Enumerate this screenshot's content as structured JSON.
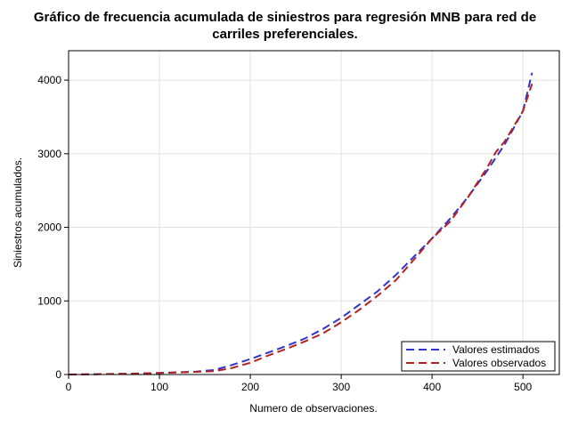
{
  "chart_data": {
    "type": "line",
    "title": "Gráfico de frecuencia acumulada de siniestros para regresión MNB para red de carriles preferenciales.",
    "title_lines": [
      "Gráfico de frecuencia acumulada de siniestros para regresión MNB para red de",
      "carriles preferenciales."
    ],
    "xlabel": "Numero de observaciones.",
    "ylabel": "Siniestros acumulados.",
    "xlim": [
      0,
      540
    ],
    "ylim": [
      0,
      4400
    ],
    "xticks": [
      0,
      100,
      200,
      300,
      400,
      500
    ],
    "yticks": [
      0,
      1000,
      2000,
      3000,
      4000
    ],
    "grid": true,
    "legend_position": "bottom-right",
    "series": [
      {
        "name": "Valores estimados",
        "color": "#3333cc",
        "dash": "dashed",
        "x": [
          0,
          20,
          40,
          60,
          80,
          100,
          120,
          140,
          160,
          180,
          200,
          220,
          240,
          260,
          280,
          300,
          320,
          340,
          360,
          380,
          400,
          420,
          440,
          460,
          480,
          500,
          510
        ],
        "y": [
          0,
          3,
          6,
          10,
          15,
          20,
          30,
          40,
          60,
          130,
          210,
          300,
          390,
          490,
          620,
          770,
          950,
          1130,
          1350,
          1600,
          1850,
          2120,
          2420,
          2760,
          3130,
          3580,
          4100
        ]
      },
      {
        "name": "Valores observados",
        "color": "#b22222",
        "dash": "dashed",
        "x": [
          0,
          20,
          40,
          60,
          80,
          100,
          120,
          140,
          160,
          180,
          200,
          220,
          240,
          260,
          280,
          300,
          320,
          340,
          360,
          380,
          400,
          420,
          440,
          460,
          470,
          480,
          500,
          510
        ],
        "y": [
          0,
          3,
          6,
          10,
          15,
          20,
          28,
          36,
          45,
          90,
          160,
          260,
          350,
          450,
          560,
          710,
          880,
          1070,
          1280,
          1560,
          1850,
          2080,
          2420,
          2800,
          3020,
          3170,
          3580,
          3950
        ]
      }
    ]
  }
}
